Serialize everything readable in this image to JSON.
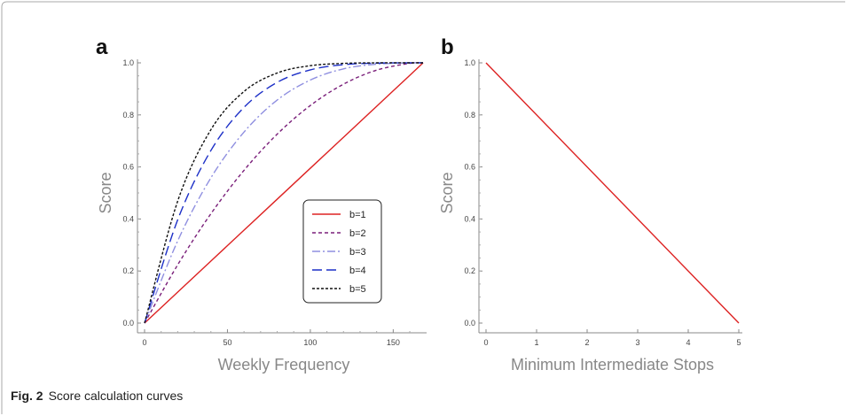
{
  "caption": {
    "label": "Fig. 2",
    "text": "Score calculation curves"
  },
  "chart_data": [
    {
      "panel_label": "a",
      "type": "line",
      "xlabel": "Weekly Frequency",
      "ylabel": "Score",
      "xlim": [
        0,
        168
      ],
      "ylim": [
        0,
        1
      ],
      "x_ticks": [
        0,
        50,
        100,
        150
      ],
      "y_ticks": [
        0.0,
        0.2,
        0.4,
        0.6,
        0.8,
        1.0
      ],
      "x_tick_labels": [
        "0",
        "50",
        "100",
        "150"
      ],
      "y_tick_labels": [
        "0.0",
        "0.2",
        "0.4",
        "0.6",
        "0.8",
        "1.0"
      ],
      "grid": false,
      "legend_position": "center-right",
      "x": [
        0,
        20,
        40,
        60,
        80,
        100,
        120,
        140,
        160,
        168
      ],
      "series": [
        {
          "name": "b=1",
          "color": "#dd2222",
          "dash": "solid",
          "values": [
            0.0,
            0.119,
            0.238,
            0.357,
            0.476,
            0.595,
            0.714,
            0.833,
            0.952,
            1.0
          ]
        },
        {
          "name": "b=2",
          "color": "#7a1f7a",
          "dash": "short-dash",
          "values": [
            0.0,
            0.224,
            0.42,
            0.587,
            0.726,
            0.836,
            0.918,
            0.972,
            0.998,
            1.0
          ]
        },
        {
          "name": "b=3",
          "color": "#8f8fe0",
          "dash": "dash-dot",
          "values": [
            0.0,
            0.316,
            0.558,
            0.734,
            0.857,
            0.934,
            0.977,
            0.995,
            1.0,
            1.0
          ]
        },
        {
          "name": "b=4",
          "color": "#1c2fc7",
          "dash": "long-dash",
          "values": [
            0.0,
            0.397,
            0.663,
            0.829,
            0.925,
            0.973,
            0.993,
            0.999,
            1.0,
            1.0
          ]
        },
        {
          "name": "b=5",
          "color": "#111111",
          "dash": "dotted-dash",
          "values": [
            0.0,
            0.469,
            0.743,
            0.89,
            0.961,
            0.989,
            0.998,
            1.0,
            1.0,
            1.0
          ]
        }
      ]
    },
    {
      "panel_label": "b",
      "type": "line",
      "xlabel": "Minimum Intermediate Stops",
      "ylabel": "Score",
      "xlim": [
        0,
        5
      ],
      "ylim": [
        0,
        1
      ],
      "x_ticks": [
        0,
        1,
        2,
        3,
        4,
        5
      ],
      "y_ticks": [
        0.0,
        0.2,
        0.4,
        0.6,
        0.8,
        1.0
      ],
      "x_tick_labels": [
        "0",
        "1",
        "2",
        "3",
        "4",
        "5"
      ],
      "y_tick_labels": [
        "0.0",
        "0.2",
        "0.4",
        "0.6",
        "0.8",
        "1.0"
      ],
      "grid": false,
      "x": [
        0,
        5
      ],
      "series": [
        {
          "color": "#dd2222",
          "dash": "solid",
          "values": [
            1.0,
            0.0
          ]
        }
      ]
    }
  ]
}
